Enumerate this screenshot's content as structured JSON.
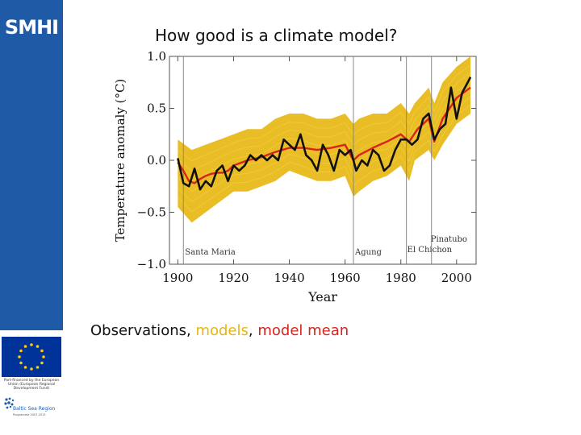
{
  "sidebar": {
    "logo_text": "SMHI",
    "eu_caption": "Part-financed by the European Union (European Regional Development Fund)",
    "bsr_name": "Baltic Sea Region",
    "bsr_sub": "Programme 2007-2013",
    "brand_color": "#1f5aa7"
  },
  "slide": {
    "title": "How good is a climate model?"
  },
  "legend_caption": {
    "observations": "Observations",
    "sep1": ", ",
    "models": "models",
    "sep2": ", ",
    "model_mean": "model mean"
  },
  "colors": {
    "observations": "#111111",
    "models": "#e7b60d",
    "model_mean": "#d9231d"
  },
  "chart_data": {
    "type": "line",
    "xlabel": "Year",
    "ylabel": "Temperature anomaly (°C)",
    "xlim": [
      1897,
      2007
    ],
    "ylim": [
      -1.0,
      1.0
    ],
    "xticks": [
      1900,
      1920,
      1940,
      1960,
      1980,
      2000
    ],
    "yticks": [
      -1.0,
      -0.5,
      0.0,
      0.5,
      1.0
    ],
    "ytick_labels": [
      "−1.0",
      "−0.5",
      "0.0",
      "0.5",
      "1.0"
    ],
    "volcanoes": [
      {
        "name": "Santa Maria",
        "year": 1902
      },
      {
        "name": "Agung",
        "year": 1963
      },
      {
        "name": "El Chichon",
        "year": 1982
      },
      {
        "name": "Pinatubo",
        "year": 1991
      }
    ],
    "model_band": {
      "x": [
        1900,
        1905,
        1910,
        1915,
        1920,
        1925,
        1930,
        1935,
        1940,
        1945,
        1950,
        1955,
        1960,
        1963,
        1965,
        1970,
        1975,
        1980,
        1983,
        1985,
        1990,
        1992,
        1995,
        2000,
        2005
      ],
      "upper": [
        0.2,
        0.1,
        0.15,
        0.2,
        0.25,
        0.3,
        0.3,
        0.4,
        0.45,
        0.45,
        0.4,
        0.4,
        0.45,
        0.35,
        0.4,
        0.45,
        0.45,
        0.55,
        0.45,
        0.55,
        0.7,
        0.55,
        0.75,
        0.9,
        1.0
      ],
      "lower": [
        -0.45,
        -0.6,
        -0.5,
        -0.4,
        -0.3,
        -0.3,
        -0.25,
        -0.2,
        -0.1,
        -0.15,
        -0.2,
        -0.2,
        -0.15,
        -0.35,
        -0.3,
        -0.2,
        -0.15,
        -0.05,
        -0.2,
        0.0,
        0.1,
        0.0,
        0.15,
        0.35,
        0.45
      ]
    },
    "series": [
      {
        "name": "model mean",
        "x": [
          1900,
          1902,
          1904,
          1906,
          1908,
          1910,
          1912,
          1914,
          1916,
          1918,
          1920,
          1925,
          1930,
          1935,
          1940,
          1945,
          1950,
          1955,
          1960,
          1963,
          1965,
          1970,
          1975,
          1980,
          1983,
          1986,
          1990,
          1992,
          1995,
          2000,
          2005
        ],
        "values": [
          -0.02,
          -0.1,
          -0.2,
          -0.22,
          -0.18,
          -0.15,
          -0.13,
          -0.12,
          -0.12,
          -0.1,
          -0.05,
          0.0,
          0.03,
          0.08,
          0.12,
          0.12,
          0.1,
          0.12,
          0.15,
          0.0,
          0.05,
          0.12,
          0.18,
          0.25,
          0.18,
          0.3,
          0.4,
          0.18,
          0.4,
          0.6,
          0.7
        ]
      },
      {
        "name": "observations",
        "x": [
          1900,
          1902,
          1904,
          1906,
          1908,
          1910,
          1912,
          1914,
          1916,
          1918,
          1920,
          1922,
          1924,
          1926,
          1928,
          1930,
          1932,
          1934,
          1936,
          1938,
          1940,
          1942,
          1944,
          1946,
          1948,
          1950,
          1952,
          1954,
          1956,
          1958,
          1960,
          1962,
          1964,
          1966,
          1968,
          1970,
          1972,
          1974,
          1976,
          1978,
          1980,
          1982,
          1984,
          1986,
          1988,
          1990,
          1992,
          1994,
          1996,
          1998,
          2000,
          2002,
          2004,
          2005
        ],
        "values": [
          0.02,
          -0.22,
          -0.25,
          -0.08,
          -0.28,
          -0.2,
          -0.25,
          -0.1,
          -0.05,
          -0.2,
          -0.05,
          -0.1,
          -0.05,
          0.05,
          0.0,
          0.05,
          0.0,
          0.05,
          0.0,
          0.2,
          0.15,
          0.1,
          0.25,
          0.05,
          0.0,
          -0.1,
          0.15,
          0.05,
          -0.1,
          0.1,
          0.05,
          0.1,
          -0.1,
          0.0,
          -0.05,
          0.1,
          0.05,
          -0.1,
          -0.05,
          0.1,
          0.2,
          0.2,
          0.15,
          0.2,
          0.4,
          0.45,
          0.2,
          0.3,
          0.35,
          0.7,
          0.4,
          0.65,
          0.75,
          0.8
        ]
      }
    ]
  }
}
